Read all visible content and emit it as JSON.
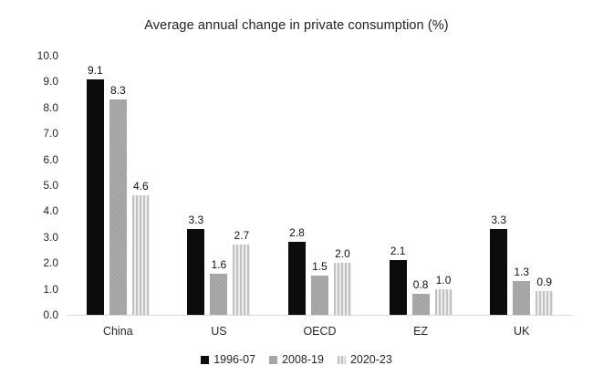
{
  "chart_data": {
    "type": "bar",
    "title": "Average annual change in private consumption (%)",
    "categories": [
      "China",
      "US",
      "OECD",
      "EZ",
      "UK"
    ],
    "series": [
      {
        "name": "1996-07",
        "values": [
          9.1,
          3.3,
          2.8,
          2.1,
          3.3
        ],
        "fill": "solid-black"
      },
      {
        "name": "2008-19",
        "values": [
          8.3,
          1.6,
          1.5,
          0.8,
          1.3
        ],
        "fill": "diagonal-hatch-gray"
      },
      {
        "name": "2020-23",
        "values": [
          4.6,
          2.7,
          2.0,
          1.0,
          0.9
        ],
        "fill": "vertical-stripes-gray"
      }
    ],
    "ylim": [
      0,
      10
    ],
    "ytick_step": 1.0,
    "ytick_labels": [
      "10.0",
      "9.0",
      "8.0",
      "7.0",
      "6.0",
      "5.0",
      "4.0",
      "3.0",
      "2.0",
      "1.0",
      "0.0"
    ],
    "grid": false,
    "legend_position": "bottom",
    "data_labels": true,
    "colors": {
      "series_1996_07": "#0c0c0c",
      "series_2008_19": "#a6a6a6",
      "series_2020_23": "#c9c9c9",
      "baseline": "#d9d9d9",
      "text": "#262626"
    }
  }
}
